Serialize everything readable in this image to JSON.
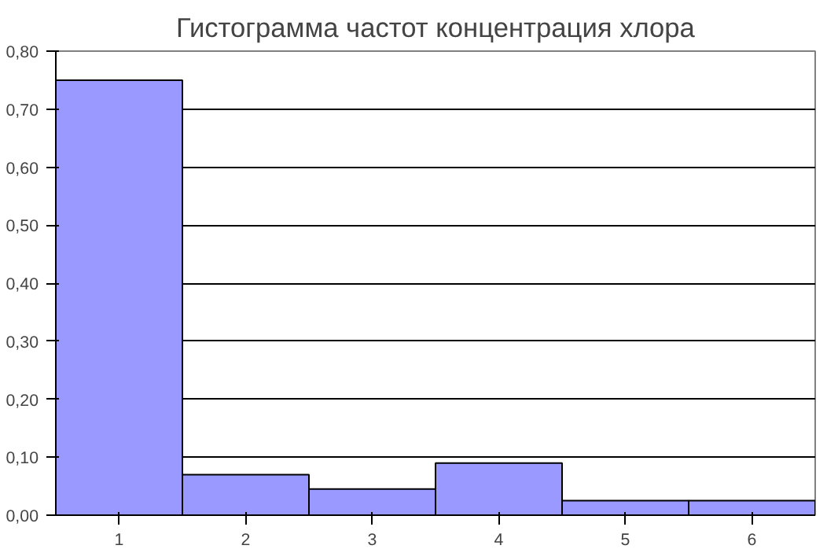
{
  "chart_data": {
    "type": "bar",
    "title": "Гистограмма частот концентрация хлора",
    "categories": [
      "1",
      "2",
      "3",
      "4",
      "5",
      "6"
    ],
    "values": [
      0.75,
      0.07,
      0.045,
      0.09,
      0.025,
      0.025
    ],
    "color": "#9999ff",
    "ylim": [
      0,
      0.8
    ],
    "yticks": [
      {
        "value": 0,
        "label": "0,00"
      },
      {
        "value": 0.1,
        "label": "0,10"
      },
      {
        "value": 0.2,
        "label": "0,20"
      },
      {
        "value": 0.3,
        "label": "0,30"
      },
      {
        "value": 0.4,
        "label": "0,40"
      },
      {
        "value": 0.5,
        "label": "0,50"
      },
      {
        "value": 0.6,
        "label": "0,60"
      },
      {
        "value": 0.7,
        "label": "0,70"
      },
      {
        "value": 0.8,
        "label": "0,80"
      }
    ],
    "grid": "y"
  }
}
